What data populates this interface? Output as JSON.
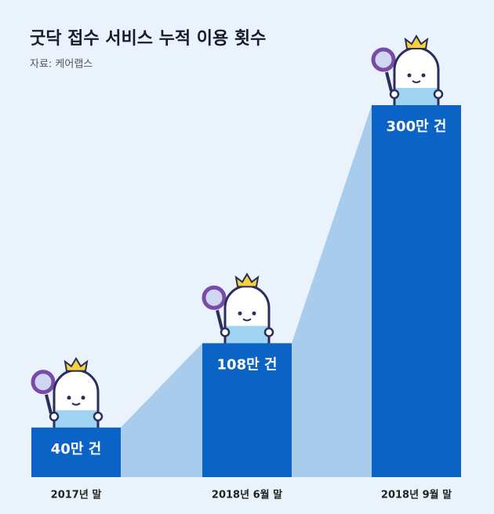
{
  "chart_data": {
    "type": "bar",
    "title": "굿닥 접수 서비스 누적 이용 횟수",
    "subtitle": "자료: 케어랩스",
    "categories": [
      "2017년 말",
      "2018년 6월 말",
      "2018년 9월 말"
    ],
    "values": [
      40,
      108,
      300
    ],
    "value_labels": [
      "40만 건",
      "108만 건",
      "300만 건"
    ],
    "color": "#0b63c5",
    "ylim": [
      0,
      300
    ]
  }
}
